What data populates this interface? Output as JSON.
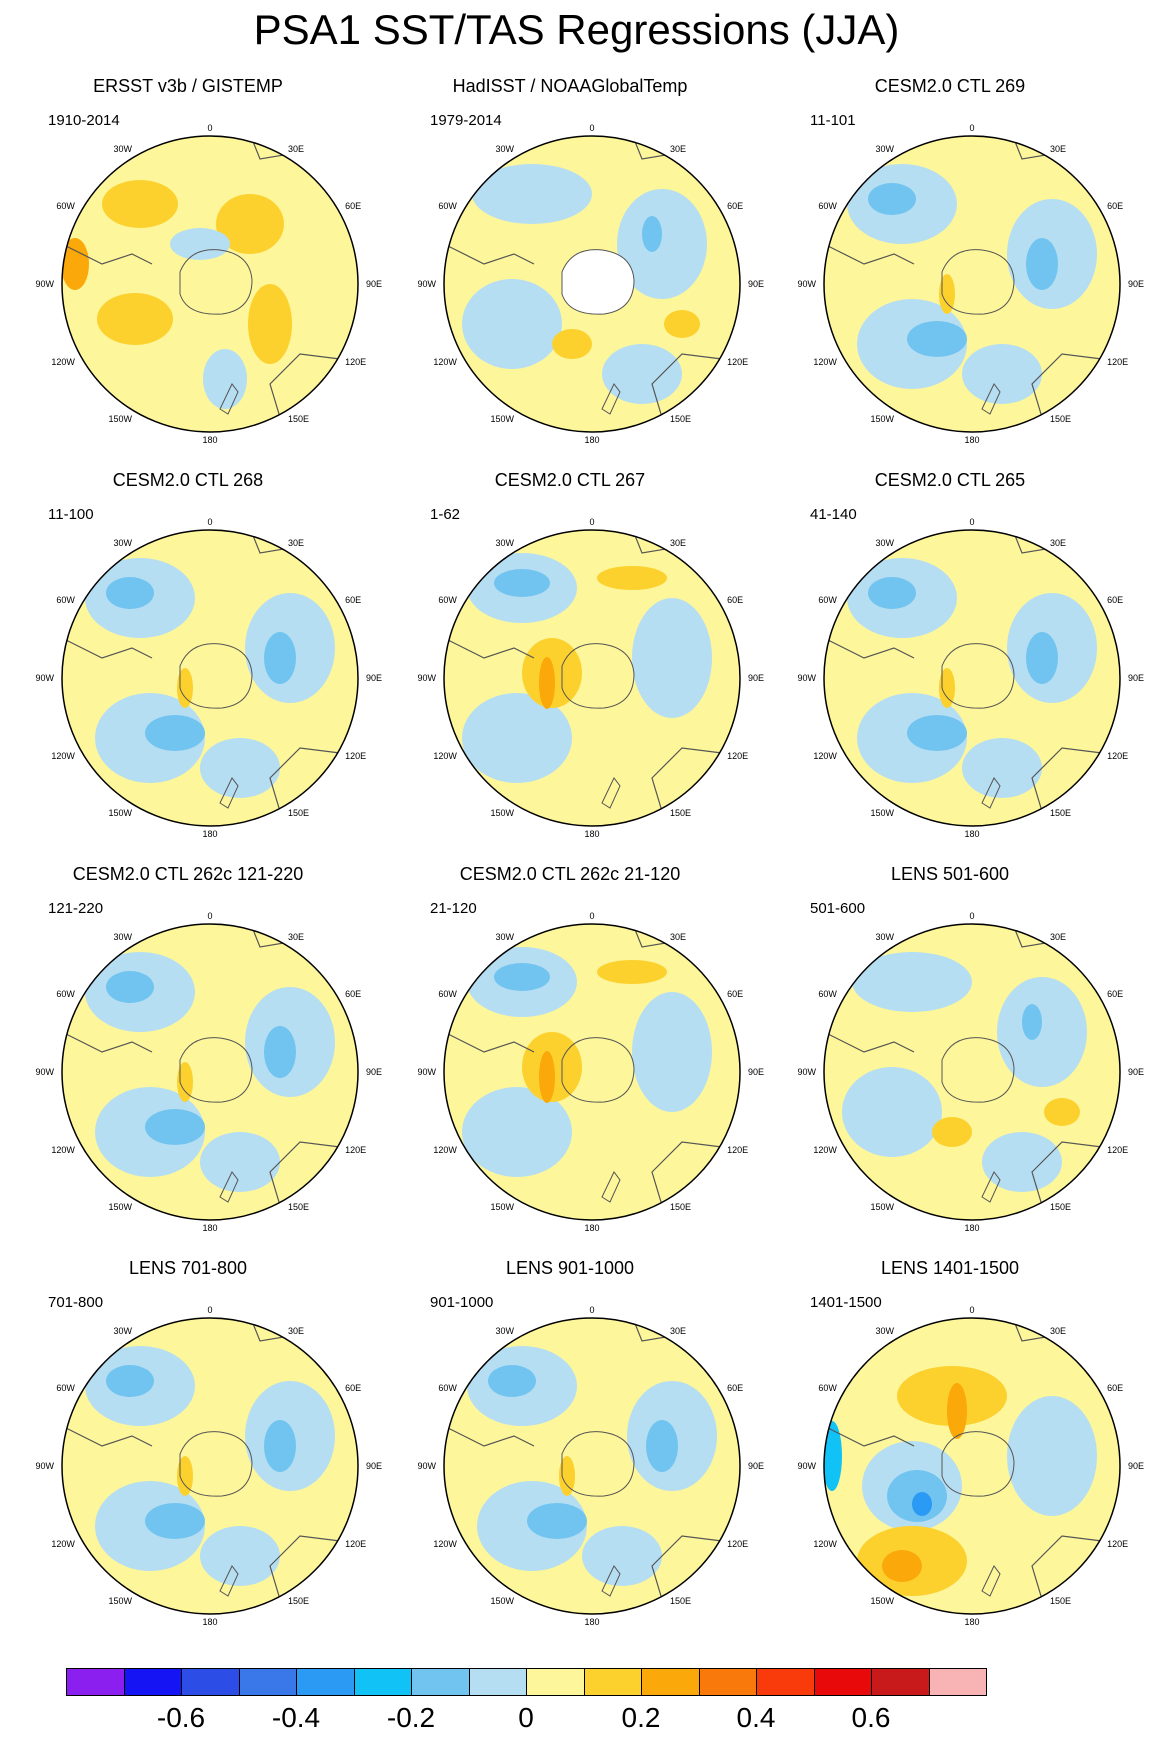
{
  "title": "PSA1 SST/TAS Regressions (JJA)",
  "lon_labels": [
    "0",
    "30E",
    "60E",
    "90E",
    "120E",
    "150E",
    "180",
    "150W",
    "120W",
    "90W",
    "60W",
    "30W"
  ],
  "panels": [
    {
      "title": "ERSST v3b / GISTEMP",
      "period": "1910-2014",
      "pattern": "warm",
      "has_missing": false
    },
    {
      "title": "HadISST / NOAAGlobalTemp",
      "period": "1979-2014",
      "pattern": "mixed",
      "has_missing": true
    },
    {
      "title": "CESM2.0 CTL 269",
      "period": "11-101",
      "pattern": "cool",
      "has_missing": false
    },
    {
      "title": "CESM2.0 CTL 268",
      "period": "11-100",
      "pattern": "cool",
      "has_missing": false
    },
    {
      "title": "CESM2.0 CTL 267",
      "period": "1-62",
      "pattern": "dipole",
      "has_missing": false
    },
    {
      "title": "CESM2.0 CTL 265",
      "period": "41-140",
      "pattern": "cool",
      "has_missing": false
    },
    {
      "title": "CESM2.0 CTL 262c 121-220",
      "period": "121-220",
      "pattern": "cool",
      "has_missing": false
    },
    {
      "title": "CESM2.0 CTL 262c 21-120",
      "period": "21-120",
      "pattern": "dipole",
      "has_missing": false
    },
    {
      "title": "LENS 501-600",
      "period": "501-600",
      "pattern": "mixed",
      "has_missing": false
    },
    {
      "title": "LENS 701-800",
      "period": "701-800",
      "pattern": "cool",
      "has_missing": false
    },
    {
      "title": "LENS 901-1000",
      "period": "901-1000",
      "pattern": "cool",
      "has_missing": false
    },
    {
      "title": "LENS 1401-1500",
      "period": "1401-1500",
      "pattern": "strong",
      "has_missing": false
    }
  ],
  "colorbar": {
    "colors": [
      "#8a1ff0",
      "#1414f5",
      "#2d4ee6",
      "#3a78ea",
      "#2a9af5",
      "#10c2f5",
      "#72c4f0",
      "#b6def2",
      "#fdf69a",
      "#fcd12e",
      "#fba80a",
      "#f97a0a",
      "#f93a0a",
      "#e80a0a",
      "#c81a1a",
      "#f8b4b4"
    ],
    "labels": [
      "-0.6",
      "-0.4",
      "-0.2",
      "0",
      "0.2",
      "0.4",
      "0.6"
    ],
    "label_boundaries": [
      2,
      4,
      6,
      8,
      10,
      12,
      14
    ]
  }
}
